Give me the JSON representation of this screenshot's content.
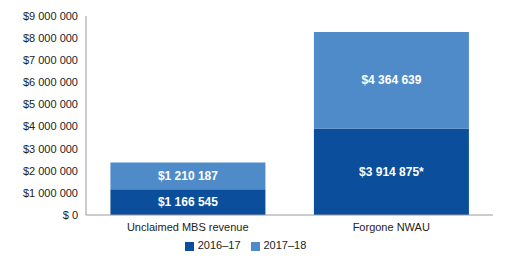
{
  "chart_data": {
    "type": "bar",
    "stacked": true,
    "data_labels": true,
    "grid": false,
    "legend": "bottom",
    "categories": [
      "Unclaimed MBS revenue",
      "Forgone NWAU"
    ],
    "series": [
      {
        "name": "2016–17",
        "color": "#0b4f9c",
        "values": [
          1166545,
          3914875
        ],
        "value_labels": [
          "$1 166 545",
          "$3 914 875*"
        ]
      },
      {
        "name": "2017–18",
        "color": "#4f8bc9",
        "values": [
          1210187,
          4364639
        ],
        "value_labels": [
          "$1 210 187",
          "$4 364 639"
        ]
      }
    ],
    "ylim": [
      0,
      9000000
    ],
    "yticks": [
      {
        "value": 0,
        "label": "$ 0"
      },
      {
        "value": 1000000,
        "label": "$1 000 000"
      },
      {
        "value": 2000000,
        "label": "$2 000 000"
      },
      {
        "value": 3000000,
        "label": "$3 000 000"
      },
      {
        "value": 4000000,
        "label": "$4 000 000"
      },
      {
        "value": 5000000,
        "label": "$5 000 000"
      },
      {
        "value": 6000000,
        "label": "$6 000 000"
      },
      {
        "value": 7000000,
        "label": "$7 000 000"
      },
      {
        "value": 8000000,
        "label": "$8 000 000"
      },
      {
        "value": 9000000,
        "label": "$9 000 000"
      }
    ]
  }
}
